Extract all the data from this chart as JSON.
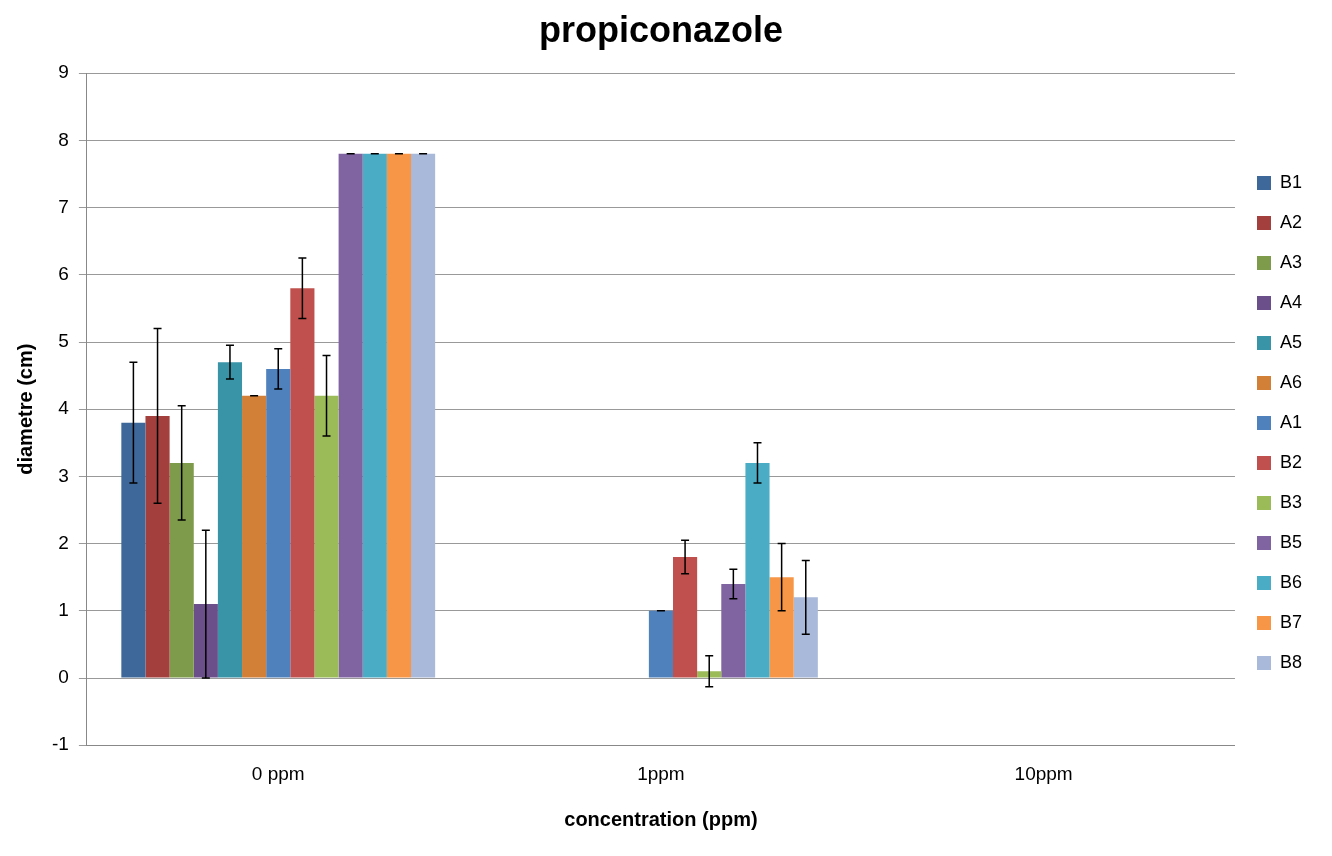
{
  "chart_data": {
    "type": "bar",
    "title": "propiconazole",
    "xlabel": "concentration (ppm)",
    "ylabel": "diametre (cm)",
    "categories": [
      "0 ppm",
      "1ppm",
      "10ppm"
    ],
    "ylim": [
      -1,
      9
    ],
    "yticks": [
      -1,
      0,
      1,
      2,
      3,
      4,
      5,
      6,
      7,
      8,
      9
    ],
    "grid": "y",
    "legend": "right",
    "series": [
      {
        "name": "B1",
        "color": "#3f689a",
        "values": [
          3.8,
          0,
          0
        ],
        "errors": [
          0.9,
          null,
          null
        ]
      },
      {
        "name": "A2",
        "color": "#a3403d",
        "values": [
          3.9,
          0,
          0
        ],
        "errors": [
          1.3,
          null,
          null
        ]
      },
      {
        "name": "A3",
        "color": "#7e9b4b",
        "values": [
          3.2,
          0,
          0
        ],
        "errors": [
          0.85,
          null,
          null
        ]
      },
      {
        "name": "A4",
        "color": "#6a4f8a",
        "values": [
          1.1,
          0,
          0
        ],
        "errors": [
          1.1,
          null,
          null
        ]
      },
      {
        "name": "A5",
        "color": "#3a94a8",
        "values": [
          4.7,
          0,
          0
        ],
        "errors": [
          0.25,
          null,
          null
        ]
      },
      {
        "name": "A6",
        "color": "#d27f37",
        "values": [
          4.2,
          0,
          0
        ],
        "errors": [
          0,
          null,
          null
        ]
      },
      {
        "name": "A1",
        "color": "#4f81bd",
        "values": [
          4.6,
          1.0,
          0
        ],
        "errors": [
          0.3,
          0,
          null
        ]
      },
      {
        "name": "B2",
        "color": "#c0504d",
        "values": [
          5.8,
          1.8,
          0
        ],
        "errors": [
          0.45,
          0.25,
          null
        ]
      },
      {
        "name": "B3",
        "color": "#9bbb59",
        "values": [
          4.2,
          0.1,
          0
        ],
        "errors": [
          0.6,
          0.23,
          null
        ]
      },
      {
        "name": "B5",
        "color": "#8064a2",
        "values": [
          7.8,
          1.4,
          0
        ],
        "errors": [
          0,
          0.22,
          null
        ]
      },
      {
        "name": "B6",
        "color": "#4bacc6",
        "values": [
          7.8,
          3.2,
          0
        ],
        "errors": [
          0,
          0.3,
          null
        ]
      },
      {
        "name": "B7",
        "color": "#f79646",
        "values": [
          7.8,
          1.5,
          0
        ],
        "errors": [
          0,
          0.5,
          null
        ]
      },
      {
        "name": "B8",
        "color": "#a9b9d9",
        "values": [
          7.8,
          1.2,
          0
        ],
        "errors": [
          0,
          0.55,
          null
        ]
      }
    ]
  }
}
